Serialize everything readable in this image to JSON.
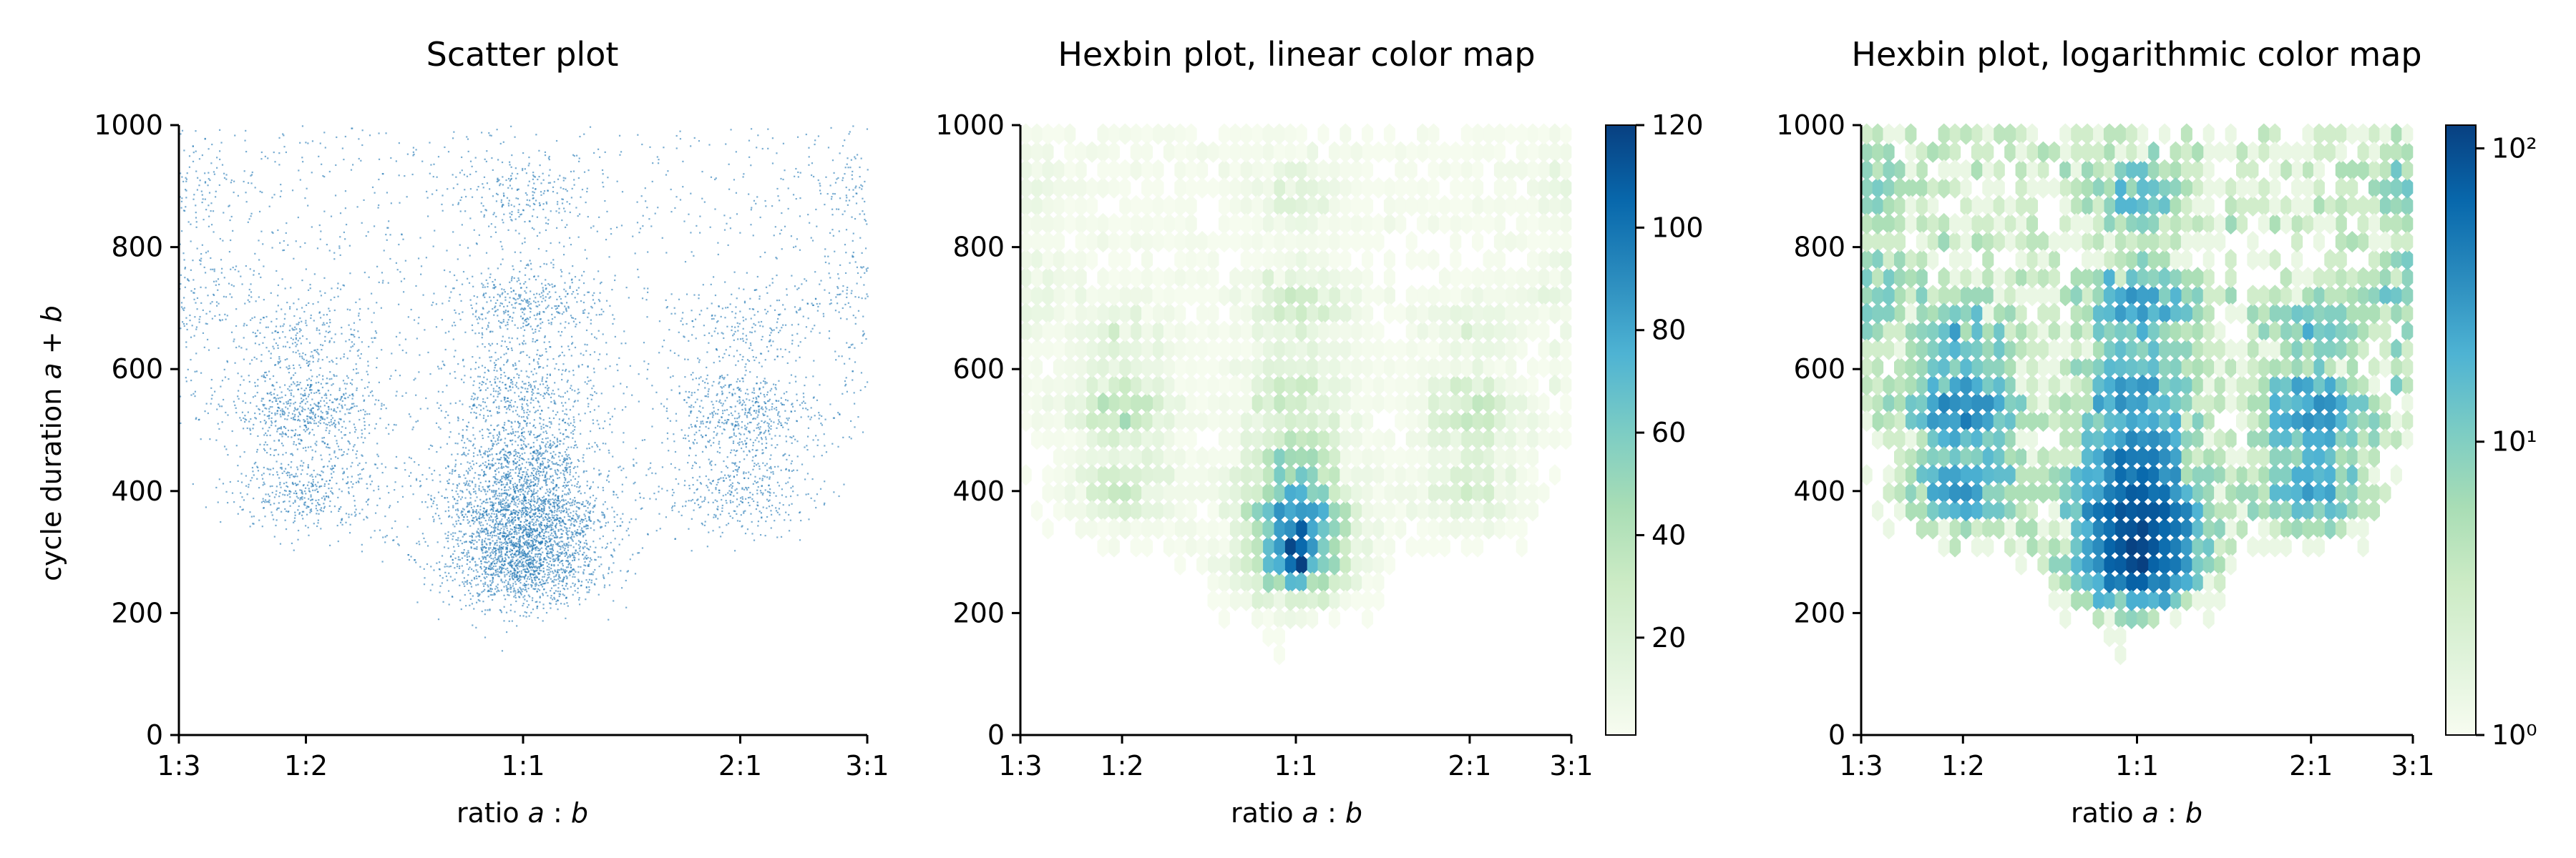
{
  "chart_data": [
    {
      "type": "scatter",
      "title": "Scatter plot",
      "xlabel": "ratio a : b",
      "ylabel": "cycle duration a + b",
      "xscale": "log",
      "xlim": [
        "1:3",
        "3:1"
      ],
      "ylim": [
        0,
        1000
      ],
      "x_ticks": [
        "1:3",
        "1:2",
        "1:1",
        "2:1",
        "3:1"
      ],
      "y_ticks": [
        0,
        200,
        400,
        600,
        800,
        1000
      ],
      "marker_color": "#1f77b4",
      "clusters": [
        {
          "x": "1:1",
          "y": 280,
          "relative_density": 1.0
        },
        {
          "x": "1:1",
          "y": 365,
          "relative_density": 0.95
        },
        {
          "x": "1:1",
          "y": 450,
          "relative_density": 0.5
        },
        {
          "x": "1:1",
          "y": 560,
          "relative_density": 0.3
        },
        {
          "x": "1:1",
          "y": 700,
          "relative_density": 0.3
        },
        {
          "x": "1:1",
          "y": 890,
          "relative_density": 0.15
        },
        {
          "x": "1:2",
          "y": 530,
          "relative_density": 0.4
        },
        {
          "x": "2:1",
          "y": 530,
          "relative_density": 0.35
        },
        {
          "x": "1:2",
          "y": 400,
          "relative_density": 0.3
        },
        {
          "x": "2:1",
          "y": 400,
          "relative_density": 0.25
        },
        {
          "x": "1:2",
          "y": 660,
          "relative_density": 0.15
        },
        {
          "x": "2:1",
          "y": 660,
          "relative_density": 0.12
        },
        {
          "x": "1:3",
          "y": 720,
          "relative_density": 0.1
        },
        {
          "x": "3:1",
          "y": 720,
          "relative_density": 0.1
        },
        {
          "x": "1:3",
          "y": 900,
          "relative_density": 0.08
        },
        {
          "x": "3:1",
          "y": 900,
          "relative_density": 0.08
        }
      ]
    },
    {
      "type": "heatmap",
      "title": "Hexbin plot, linear color map",
      "xlabel": "ratio a : b",
      "xscale": "log",
      "xlim": [
        "1:3",
        "3:1"
      ],
      "ylim": [
        0,
        1000
      ],
      "x_ticks": [
        "1:3",
        "1:2",
        "1:1",
        "2:1",
        "3:1"
      ],
      "y_ticks": [
        0,
        200,
        400,
        600,
        800,
        1000
      ],
      "colormap": "GnBu",
      "colorbar": {
        "scale": "linear",
        "range": [
          1,
          120
        ],
        "ticks": [
          20,
          40,
          60,
          80,
          100,
          120
        ]
      }
    },
    {
      "type": "heatmap",
      "title": "Hexbin plot, logarithmic color map",
      "xlabel": "ratio a : b",
      "xscale": "log",
      "xlim": [
        "1:3",
        "3:1"
      ],
      "ylim": [
        0,
        1000
      ],
      "x_ticks": [
        "1:3",
        "1:2",
        "1:1",
        "2:1",
        "3:1"
      ],
      "y_ticks": [
        0,
        200,
        400,
        600,
        800,
        1000
      ],
      "colormap": "GnBu",
      "colorbar": {
        "scale": "log",
        "range": [
          1,
          120
        ],
        "ticks": [
          1,
          10,
          100
        ],
        "tick_labels": [
          "10⁰",
          "10¹",
          "10²"
        ]
      }
    }
  ]
}
